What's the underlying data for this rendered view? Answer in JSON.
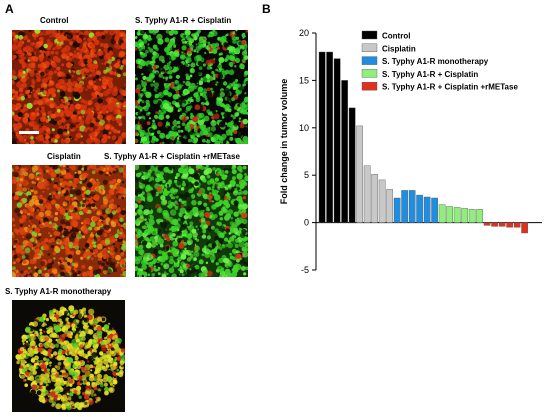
{
  "panels": {
    "a_letter": "A",
    "b_letter": "B"
  },
  "micrographs": [
    {
      "label": "Control",
      "palette": "red"
    },
    {
      "label": "S. Typhy A1-R + Cisplatin",
      "palette": "green-sparse"
    },
    {
      "label": "Cisplatin",
      "palette": "red-green"
    },
    {
      "label": "S. Typhy A1-R + Cisplatin +rMETase",
      "palette": "green"
    },
    {
      "label": "S. Typhy A1-R monotherapy",
      "palette": "yellow"
    }
  ],
  "colors": {
    "control": "#000000",
    "cisplatin": "#c8c8c8",
    "monotherapy": "#1f8ee0",
    "combo": "#8ef07a",
    "combo_rmetase": "#e0301e"
  },
  "chart_data": {
    "type": "bar",
    "ylabel": "Fold change in tumor volume",
    "ylim": [
      -5,
      20
    ],
    "yticks": [
      -5,
      0,
      5,
      10,
      15,
      20
    ],
    "legend_position": "top-right",
    "series": [
      {
        "name": "Control",
        "color": "#000000",
        "values": [
          18,
          18,
          17.3,
          15,
          12.1
        ]
      },
      {
        "name": "Cisplatin",
        "color": "#c8c8c8",
        "values": [
          10.2,
          6,
          5.1,
          4.5,
          3.5
        ]
      },
      {
        "name": "S. Typhy A1-R monotherapy",
        "color": "#1f8ee0",
        "values": [
          2.6,
          3.4,
          3.4,
          2.9,
          2.7,
          2.6
        ]
      },
      {
        "name": "S. Typhy A1-R + Cisplatin",
        "color": "#8ef07a",
        "values": [
          1.9,
          1.7,
          1.6,
          1.5,
          1.4,
          1.4
        ]
      },
      {
        "name": "S. Typhy A1-R + Cisplatin +rMETase",
        "color": "#e0301e",
        "values": [
          -0.3,
          -0.4,
          -0.4,
          -0.5,
          -0.5,
          -1.1
        ]
      }
    ]
  }
}
